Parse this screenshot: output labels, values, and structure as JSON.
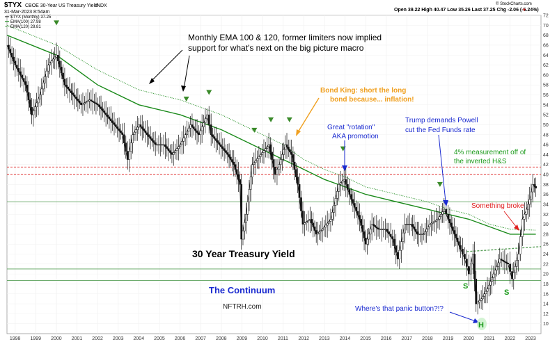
{
  "header": {
    "symbol": "$TYX",
    "description": "CBOE 30-Year US Treasury Yield",
    "exchange": "INDX",
    "date": "31-Mar-2023 8:54am",
    "ohlc": "Open 39.22  High 40.47  Low 35.26  Last 37.25  Chg -2.06 (-5.24%)",
    "down_marker": "▼",
    "brand": "© StockCharts.com"
  },
  "legend": [
    {
      "label": "$TYX (Monthly) 37.25",
      "color": "#000000"
    },
    {
      "label": "EMA(100) 27.98",
      "color": "#1a8a1a"
    },
    {
      "label": "EMA(120) 28.81",
      "color": "#1a8a1a"
    }
  ],
  "annotations": {
    "ema_note_line1": "Monthly EMA 100 & 120, former limiters now implied",
    "ema_note_line2": "support for what's next on the big picture macro",
    "bond_king_line1": "Bond King: short the long",
    "bond_king_line2": "bond because... inflation!",
    "rotation_line1": "Great \"rotation\"",
    "rotation_line2": "AKA promotion",
    "trump_line1": "Trump demands Powell",
    "trump_line2": "cut the Fed Funds rate",
    "measure_line1": "4% measurement off of",
    "measure_line2": "the inverted H&S",
    "something_broke": "Something broke",
    "yield_title": "30 Year Treasury Yield",
    "continuum": "The Continuum",
    "nftrh": "NFTRH.com",
    "panic": "Where's that panic button?!?",
    "s_left": "S",
    "s_right": "S",
    "h": "H"
  },
  "colors": {
    "ema_annotation": "#000000",
    "bond_king": "#f0a020",
    "rotation": "#1a2ad0",
    "trump": "#1a2ad0",
    "measure": "#1a9a1a",
    "something_broke": "#e02020",
    "continuum": "#1a2ad0",
    "panic": "#1a2ad0",
    "hs_letters": "#1a9a1a",
    "green_markers": "#3a8a2a"
  },
  "chart_data": {
    "type": "line",
    "price_type": "monthly candlestick",
    "title": "$TYX CBOE 30-Year US Treasury Yield",
    "ylabel": "",
    "ylim": [
      8,
      72
    ],
    "y_ticks": [
      10,
      12,
      14,
      16,
      18,
      20,
      22,
      24,
      26,
      28,
      30,
      32,
      34,
      36,
      38,
      40,
      42,
      44,
      46,
      48,
      50,
      52,
      54,
      56,
      58,
      60,
      62,
      64,
      66,
      68,
      70,
      72
    ],
    "x_ticks": [
      "1998",
      "1999",
      "2000",
      "2001",
      "2002",
      "2003",
      "2004",
      "2005",
      "2006",
      "2007",
      "2008",
      "2009",
      "2010",
      "2011",
      "2012",
      "2013",
      "2014",
      "2015",
      "2016",
      "2017",
      "2018",
      "2019",
      "2020",
      "2021",
      "2022",
      "2023"
    ],
    "xlim": [
      1997.6,
      2023.5
    ],
    "series": [
      {
        "name": "$TYX",
        "x": [
          1997.6,
          1998.0,
          1998.5,
          1998.8,
          1999.2,
          1999.6,
          2000.0,
          2000.4,
          2000.8,
          2001.2,
          2001.6,
          2002.0,
          2002.4,
          2002.8,
          2003.2,
          2003.45,
          2003.7,
          2004.0,
          2004.4,
          2004.8,
          2005.2,
          2005.6,
          2006.0,
          2006.5,
          2006.9,
          2007.3,
          2007.5,
          2007.9,
          2008.3,
          2008.6,
          2008.9,
          2008.97,
          2009.2,
          2009.5,
          2009.9,
          2010.3,
          2010.6,
          2010.8,
          2011.1,
          2011.4,
          2011.7,
          2011.95,
          2012.3,
          2012.6,
          2012.9,
          2013.3,
          2013.7,
          2013.95,
          2014.3,
          2014.7,
          2015.0,
          2015.3,
          2015.6,
          2015.95,
          2016.3,
          2016.55,
          2016.9,
          2017.2,
          2017.5,
          2017.8,
          2018.1,
          2018.5,
          2018.8,
          2019.0,
          2019.3,
          2019.6,
          2019.8,
          2020.0,
          2020.2,
          2020.35,
          2020.6,
          2020.9,
          2021.2,
          2021.5,
          2021.9,
          2022.1,
          2022.4,
          2022.6,
          2022.8,
          2022.95,
          2023.1,
          2023.25
        ],
        "values": [
          66,
          62,
          58,
          52,
          56,
          62,
          64,
          58,
          56,
          54,
          55,
          54,
          52,
          50,
          48,
          43,
          48,
          50,
          48,
          46,
          46,
          44,
          46,
          50,
          48,
          52,
          48,
          46,
          44,
          42,
          38,
          27,
          32,
          42,
          44,
          46,
          40,
          42,
          46,
          44,
          38,
          30,
          31,
          28,
          29,
          31,
          38,
          39,
          35,
          31,
          26,
          30,
          29,
          29,
          27,
          23,
          30,
          30,
          28,
          28,
          30,
          31,
          33,
          31,
          28,
          25,
          23,
          20,
          24,
          14,
          15,
          17,
          20,
          23,
          22,
          19,
          24,
          31,
          33,
          35,
          38,
          37.25
        ]
      },
      {
        "name": "EMA(100)",
        "x": [
          1997.6,
          2000,
          2002,
          2004,
          2006,
          2008,
          2010,
          2011,
          2012,
          2013,
          2014,
          2015,
          2016,
          2017,
          2018,
          2019,
          2020,
          2021,
          2022,
          2023.25
        ],
        "values": [
          68,
          64,
          58,
          54,
          52,
          49,
          45,
          43,
          41,
          39,
          37.5,
          36,
          35,
          34,
          33,
          32,
          31,
          29.5,
          28,
          28
        ]
      },
      {
        "name": "EMA(120)",
        "x": [
          1997.6,
          2000,
          2002,
          2004,
          2006,
          2008,
          2010,
          2011,
          2012,
          2013,
          2014,
          2015,
          2016,
          2017,
          2018,
          2019,
          2020,
          2021,
          2022,
          2023.25
        ],
        "values": [
          70,
          66,
          61,
          57,
          55,
          52,
          48,
          46,
          43,
          41,
          39.5,
          37.5,
          36.5,
          35.5,
          34.5,
          33,
          32,
          30,
          29,
          28.8
        ]
      }
    ],
    "horizontal_lines": [
      {
        "value": 41.5,
        "style": "dashed",
        "color": "#e03030"
      },
      {
        "value": 40.0,
        "style": "dashed",
        "color": "#e03030"
      },
      {
        "value": 34.5,
        "style": "solid",
        "color": "#5aa05a"
      },
      {
        "value": 21.0,
        "style": "solid",
        "color": "#5aa05a"
      },
      {
        "value": 18.7,
        "style": "solid",
        "color": "#5aa05a"
      }
    ],
    "neckline": {
      "x": [
        2019.9,
        2023.5
      ],
      "values": [
        24.5,
        25.5
      ],
      "color": "#5aa05a"
    },
    "green_markers_x": [
      2000.0,
      2006.3,
      2007.4,
      2009.6,
      2010.4,
      2011.3,
      2013.9,
      2018.6
    ]
  }
}
